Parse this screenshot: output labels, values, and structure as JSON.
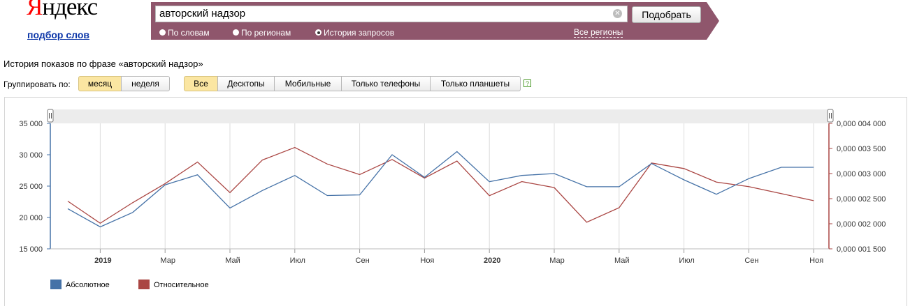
{
  "logo": {
    "first_letter": "Я",
    "rest": "ндекс"
  },
  "service_link": "подбор слов",
  "search": {
    "value": "авторский надзор",
    "submit_label": "Подобрать",
    "clear_icon": "clear-icon"
  },
  "modes": [
    {
      "label": "По словам",
      "selected": false
    },
    {
      "label": "По регионам",
      "selected": false
    },
    {
      "label": "История запросов",
      "selected": true
    }
  ],
  "regions_link": "Все регионы",
  "history_title": "История показов по фразе «авторский надзор»",
  "group_label": "Группировать по:",
  "group_buttons": [
    {
      "label": "месяц",
      "active": true
    },
    {
      "label": "неделя",
      "active": false
    }
  ],
  "device_buttons": [
    {
      "label": "Все",
      "active": true
    },
    {
      "label": "Десктопы",
      "active": false
    },
    {
      "label": "Мобильные",
      "active": false
    },
    {
      "label": "Только телефоны",
      "active": false
    },
    {
      "label": "Только планшеты",
      "active": false
    }
  ],
  "help_label": "?",
  "colors": {
    "absolute": "#4572a7",
    "relative": "#aa4643",
    "brand_bar": "#8f566c"
  },
  "chart_data": {
    "type": "line",
    "x": [
      "2018-12",
      "2019-01",
      "2019-02",
      "2019-03",
      "2019-04",
      "2019-05",
      "2019-06",
      "2019-07",
      "2019-08",
      "2019-09",
      "2019-10",
      "2019-11",
      "2019-12",
      "2020-01",
      "2020-02",
      "2020-03",
      "2020-04",
      "2020-05",
      "2020-06",
      "2020-07",
      "2020-08",
      "2020-09",
      "2020-10",
      "2020-11"
    ],
    "series": [
      {
        "name": "Абсолютное",
        "axis": "left",
        "values": [
          21400,
          18500,
          20800,
          25200,
          26800,
          21500,
          24300,
          26700,
          23500,
          23600,
          30000,
          26400,
          30500,
          25700,
          26700,
          27000,
          24900,
          24900,
          28600,
          26000,
          23700,
          26200,
          28000,
          28000
        ]
      },
      {
        "name": "Относительное",
        "axis": "right",
        "values": [
          2.45e-06,
          2.01e-06,
          2.42e-06,
          2.8e-06,
          3.23e-06,
          2.62e-06,
          3.27e-06,
          3.52e-06,
          3.19e-06,
          2.98e-06,
          3.28e-06,
          2.91e-06,
          3.25e-06,
          2.56e-06,
          2.84e-06,
          2.72e-06,
          2.03e-06,
          2.32e-06,
          3.21e-06,
          3.1e-06,
          2.83e-06,
          2.74e-06,
          2.6e-06,
          2.46e-06
        ]
      }
    ],
    "ylim_left": [
      15000,
      35000
    ],
    "ylim_right": [
      1.5e-06,
      4e-06
    ],
    "yticks_left": [
      "15 000",
      "20 000",
      "25 000",
      "30 000",
      "35 000"
    ],
    "yticks_right": [
      "0,000 001 500",
      "0,000 002 000",
      "0,000 002 500",
      "0,000 003 000",
      "0,000 003 500",
      "0,000 004 000"
    ],
    "xticks": [
      {
        "label": "2019",
        "x": "2019-01",
        "bold": true
      },
      {
        "label": "Мар",
        "x": "2019-03",
        "bold": false
      },
      {
        "label": "Май",
        "x": "2019-05",
        "bold": false
      },
      {
        "label": "Июл",
        "x": "2019-07",
        "bold": false
      },
      {
        "label": "Сен",
        "x": "2019-09",
        "bold": false
      },
      {
        "label": "Ноя",
        "x": "2019-11",
        "bold": false
      },
      {
        "label": "2020",
        "x": "2020-01",
        "bold": true
      },
      {
        "label": "Мар",
        "x": "2020-03",
        "bold": false
      },
      {
        "label": "Май",
        "x": "2020-05",
        "bold": false
      },
      {
        "label": "Июл",
        "x": "2020-07",
        "bold": false
      },
      {
        "label": "Сен",
        "x": "2020-09",
        "bold": false
      },
      {
        "label": "Ноя",
        "x": "2020-11",
        "bold": false
      }
    ],
    "grid": true,
    "legend": "bottom-left"
  }
}
